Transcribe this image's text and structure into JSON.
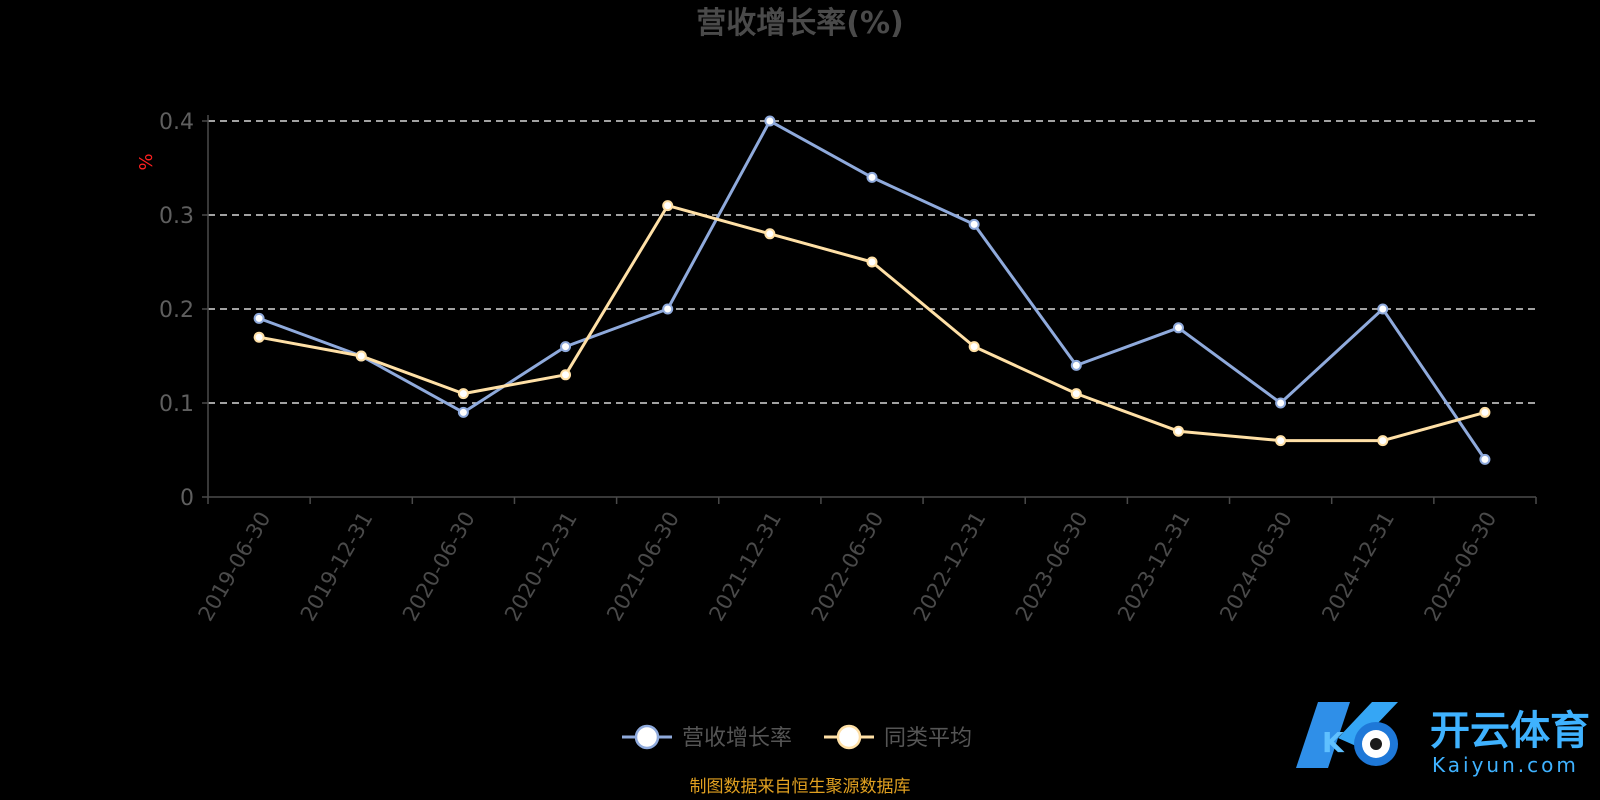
{
  "chart_data": {
    "type": "line",
    "title": "营收增长率(%)",
    "ylabel": "%",
    "xlabel": "",
    "categories": [
      "2019-06-30",
      "2019-12-31",
      "2020-06-30",
      "2020-12-31",
      "2021-06-30",
      "2021-12-31",
      "2022-06-30",
      "2022-12-31",
      "2023-06-30",
      "2023-12-31",
      "2024-06-30",
      "2024-12-31",
      "2025-06-30"
    ],
    "yticks": [
      "0",
      "0.1",
      "0.2",
      "0.3",
      "0.4"
    ],
    "ylim": [
      0,
      0.4
    ],
    "grid": "dashed horizontal",
    "legend_position": "bottom-center",
    "series": [
      {
        "name": "营收增长率",
        "color": "#8faadc",
        "values": [
          0.19,
          0.15,
          0.09,
          0.16,
          0.2,
          0.4,
          0.34,
          0.29,
          0.14,
          0.18,
          0.1,
          0.2,
          0.04
        ]
      },
      {
        "name": "同类平均",
        "color": "#ffe0a6",
        "values": [
          0.17,
          0.15,
          0.11,
          0.13,
          0.31,
          0.28,
          0.25,
          0.16,
          0.11,
          0.07,
          0.06,
          0.06,
          0.09
        ]
      }
    ]
  },
  "footer": {
    "source": "制图数据来自恒生聚源数据库"
  },
  "watermark": {
    "brand_cn": "开云体育",
    "brand_en": "Kaiyun.com",
    "logo_letter": "K"
  }
}
